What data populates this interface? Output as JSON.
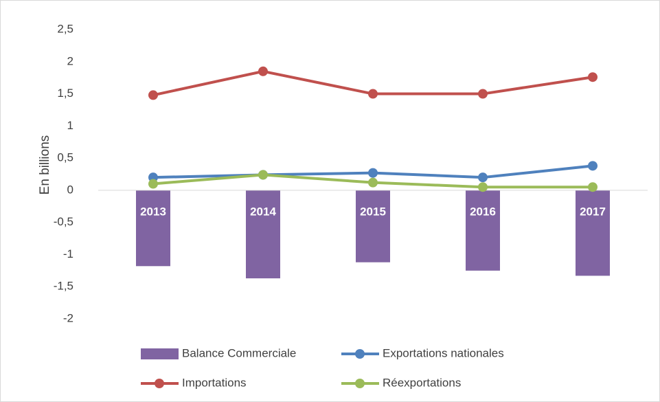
{
  "chart_data": {
    "type": "combo",
    "y_label": "En billions",
    "categories": [
      "2013",
      "2014",
      "2015",
      "2016",
      "2017"
    ],
    "series": [
      {
        "name": "Balance Commerciale",
        "type": "bar",
        "color": "#8064a2",
        "values": [
          -1.18,
          -1.37,
          -1.12,
          -1.25,
          -1.33
        ]
      },
      {
        "name": "Exportations nationales",
        "type": "line",
        "color": "#4f81bd",
        "values": [
          0.2,
          0.24,
          0.27,
          0.2,
          0.38
        ]
      },
      {
        "name": "Importations",
        "type": "line",
        "color": "#c0504d",
        "values": [
          1.48,
          1.85,
          1.5,
          1.5,
          1.76
        ]
      },
      {
        "name": "Réexportations",
        "type": "line",
        "color": "#9bbb59",
        "values": [
          0.1,
          0.24,
          0.12,
          0.05,
          0.05
        ]
      }
    ],
    "ylim": [
      -2,
      2.5
    ],
    "yticks": [
      -2,
      {
        "value": -1.5,
        "label": "-1,5"
      },
      -1,
      {
        "value": -0.5,
        "label": "-0,5"
      },
      0,
      {
        "value": 0.5,
        "label": "0,5"
      },
      1,
      {
        "value": 1.5,
        "label": "1,5"
      },
      2,
      {
        "value": 2.5,
        "label": "2,5"
      }
    ],
    "grid": false,
    "legend": "bottom"
  }
}
